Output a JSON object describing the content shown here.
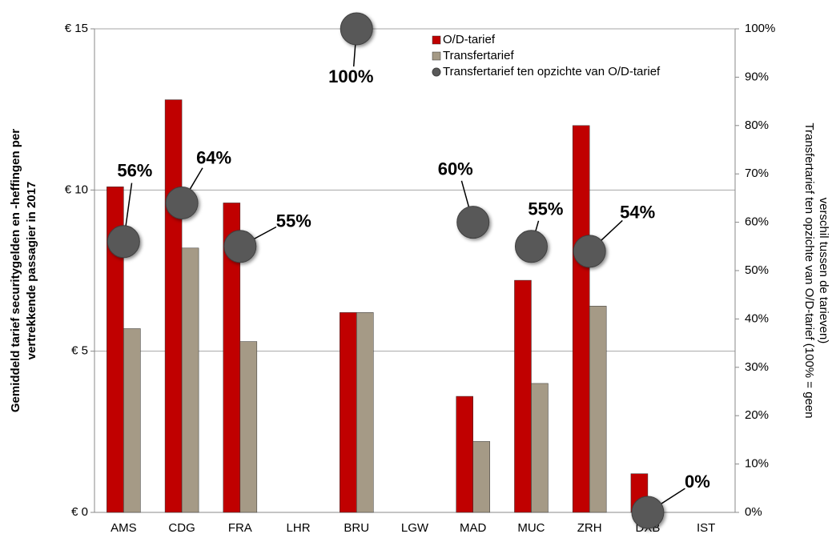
{
  "chart_data": {
    "type": "bar",
    "y_label": [
      "Gemiddeld tarief securitygelden en -heffingen per",
      "vertrekkende passagier in 2017"
    ],
    "y2_label": [
      "Transfertarief ten opzichte van O/D-tarief (100% = geen",
      "verschil tussen de tarieven)"
    ],
    "categories": [
      "AMS",
      "CDG",
      "FRA",
      "LHR",
      "BRU",
      "LGW",
      "MAD",
      "MUC",
      "ZRH",
      "DXB",
      "IST"
    ],
    "series": [
      {
        "name": "O/D-tarief",
        "color": "#c00000",
        "values": [
          10.1,
          12.8,
          9.6,
          null,
          6.2,
          null,
          3.6,
          7.2,
          12.0,
          1.2,
          null
        ]
      },
      {
        "name": "Transfertarief",
        "color": "#a59a86",
        "values": [
          5.7,
          8.2,
          5.3,
          null,
          6.2,
          null,
          2.2,
          4.0,
          6.4,
          0,
          null
        ]
      },
      {
        "name": "Transfertarief ten opzichte van O/D-tarief",
        "color": "#595959",
        "type": "scatter",
        "axis": "y2",
        "values": [
          56,
          64,
          55,
          null,
          100,
          null,
          60,
          55,
          54,
          0,
          null
        ],
        "value_labels": [
          "56%",
          "64%",
          "55%",
          null,
          "100%",
          null,
          "60%",
          "55%",
          "54%",
          "0%",
          null
        ]
      }
    ],
    "ylim": [
      0,
      15
    ],
    "yticks": [
      {
        "value": 0,
        "label": "€ 0"
      },
      {
        "value": 5,
        "label": "€ 5"
      },
      {
        "value": 10,
        "label": "€ 10"
      },
      {
        "value": 15,
        "label": "€ 15"
      }
    ],
    "y2lim": [
      0,
      100
    ],
    "y2ticks": [
      {
        "value": 0,
        "label": "0%"
      },
      {
        "value": 10,
        "label": "10%"
      },
      {
        "value": 20,
        "label": "20%"
      },
      {
        "value": 30,
        "label": "30%"
      },
      {
        "value": 40,
        "label": "40%"
      },
      {
        "value": 50,
        "label": "50%"
      },
      {
        "value": 60,
        "label": "60%"
      },
      {
        "value": 70,
        "label": "70%"
      },
      {
        "value": 80,
        "label": "80%"
      },
      {
        "value": 90,
        "label": "90%"
      },
      {
        "value": 100,
        "label": "100%"
      }
    ],
    "grid": true,
    "legend": "top-right"
  }
}
